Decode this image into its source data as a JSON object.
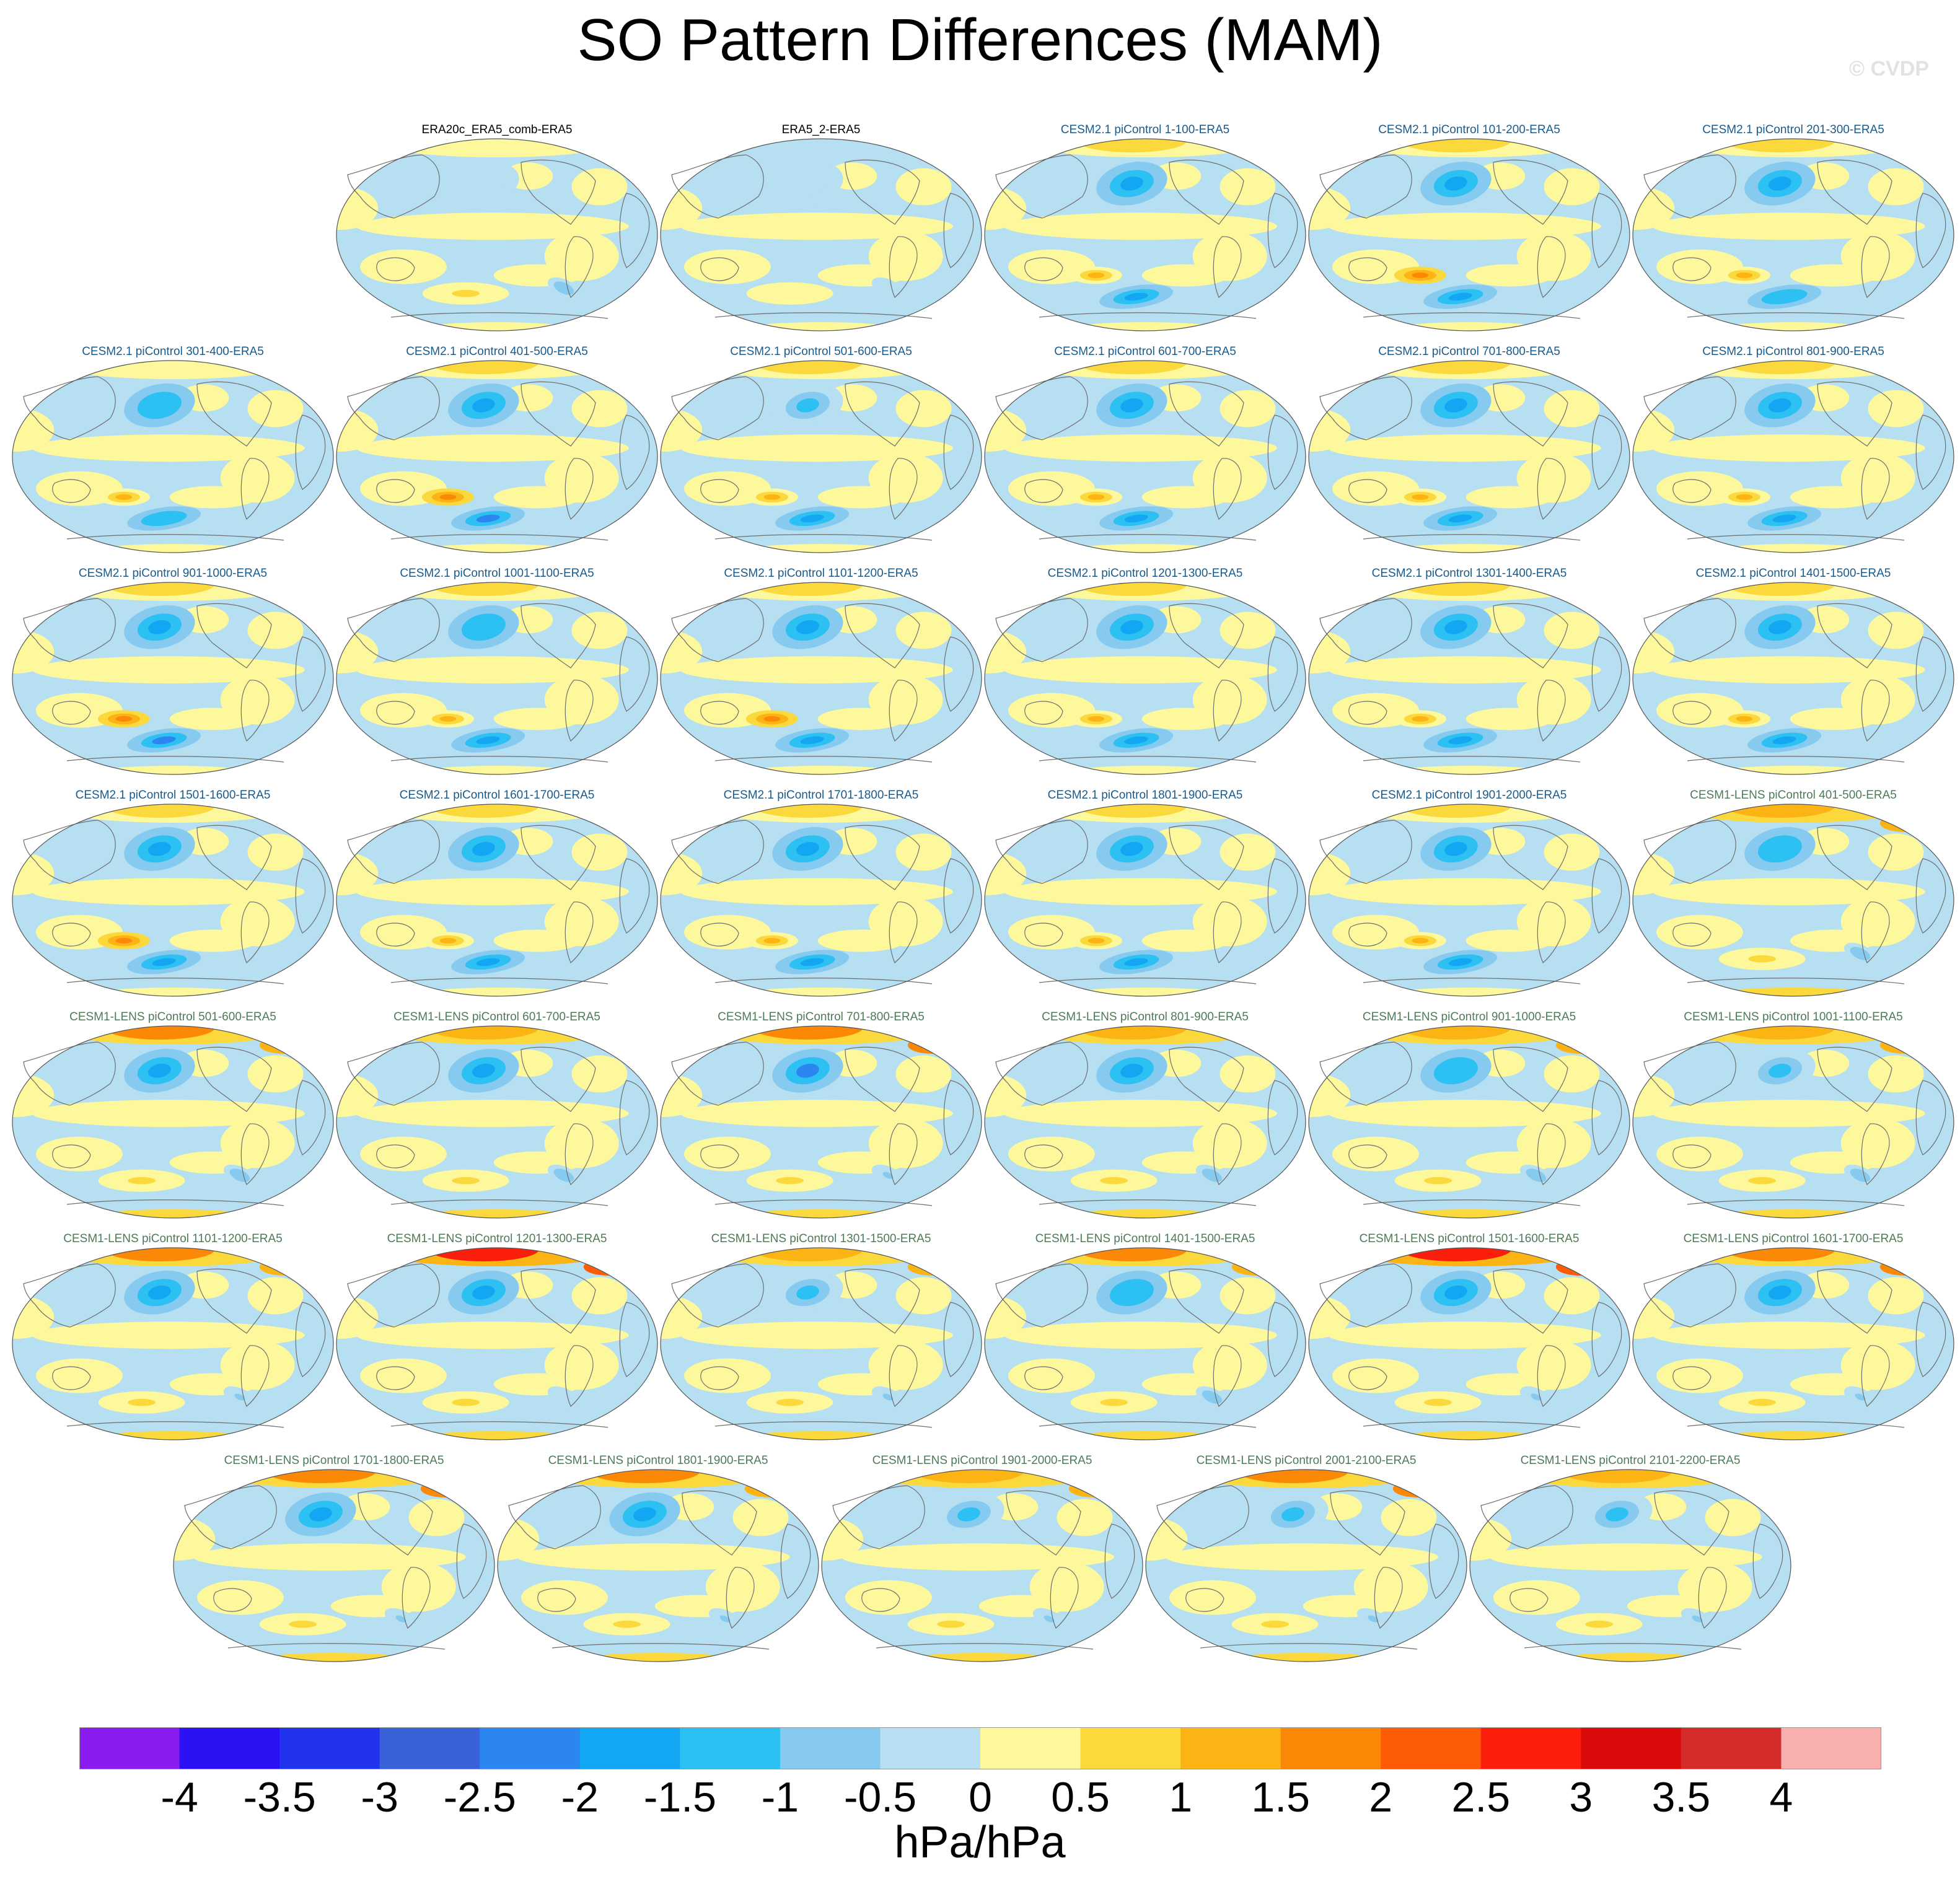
{
  "title": "SO Pattern Differences (MAM)",
  "watermark": "© CVDP",
  "chart_data": {
    "type": "heatmap",
    "title": "SO Pattern Differences (MAM)",
    "projection": "Robinson global maps (Pacific-centred)",
    "variable": "Southern Oscillation sea level pressure regression pattern difference vs ERA5",
    "units": "hPa/hPa",
    "colorbar": {
      "levels": [
        -4,
        -3.5,
        -3,
        -2.5,
        -2,
        -1.5,
        -1,
        -0.5,
        0,
        0.5,
        1,
        1.5,
        2,
        2.5,
        3,
        3.5,
        4
      ],
      "tick_labels": [
        "-4",
        "-3.5",
        "-3",
        "-2.5",
        "-2",
        "-1.5",
        "-1",
        "-0.5",
        "0",
        "0.5",
        "1",
        "1.5",
        "2",
        "2.5",
        "3",
        "3.5",
        "4"
      ],
      "colors": [
        "#8a1cf0",
        "#2a12f5",
        "#2233ee",
        "#3a62d8",
        "#2b86f0",
        "#13a6f2",
        "#2cc0f3",
        "#86caef",
        "#b6dff2",
        "#fdf89b",
        "#fbd83c",
        "#fcb314",
        "#fb8807",
        "#fd5b06",
        "#fc1e0d",
        "#db0b0c",
        "#d42b2b",
        "#fbb0b0"
      ],
      "label": "hPa/hPa"
    },
    "panels": [
      {
        "label": "ERA20c_ERA5_comb-ERA5",
        "group": "obs",
        "nh_blob": 0.4,
        "sh_blob": 0.9,
        "arctic": 0.1
      },
      {
        "label": "ERA5_2-ERA5",
        "group": "obs",
        "nh_blob": 0.2,
        "sh_blob": 0.3,
        "arctic": 0.0
      },
      {
        "label": "CESM2.1 piControl 1-100-ERA5",
        "group": "cesm2",
        "nh_blob": 1.7,
        "sh_blob": 1.8,
        "arctic": 0.6
      },
      {
        "label": "CESM2.1 piControl 101-200-ERA5",
        "group": "cesm2",
        "nh_blob": 1.6,
        "sh_blob": 2.0,
        "arctic": 0.6
      },
      {
        "label": "CESM2.1 piControl 201-300-ERA5",
        "group": "cesm2",
        "nh_blob": 1.8,
        "sh_blob": 1.5,
        "arctic": 0.5
      },
      {
        "label": "CESM2.1 piControl 301-400-ERA5",
        "group": "cesm2",
        "nh_blob": 1.5,
        "sh_blob": 1.5,
        "arctic": 0.4
      },
      {
        "label": "CESM2.1 piControl 401-500-ERA5",
        "group": "cesm2",
        "nh_blob": 1.6,
        "sh_blob": 2.1,
        "arctic": 0.6
      },
      {
        "label": "CESM2.1 piControl 501-600-ERA5",
        "group": "cesm2",
        "nh_blob": 1.3,
        "sh_blob": 1.7,
        "arctic": 0.6
      },
      {
        "label": "CESM2.1 piControl 601-700-ERA5",
        "group": "cesm2",
        "nh_blob": 1.6,
        "sh_blob": 1.6,
        "arctic": 0.6
      },
      {
        "label": "CESM2.1 piControl 701-800-ERA5",
        "group": "cesm2",
        "nh_blob": 1.6,
        "sh_blob": 1.8,
        "arctic": 0.5
      },
      {
        "label": "CESM2.1 piControl 801-900-ERA5",
        "group": "cesm2",
        "nh_blob": 1.7,
        "sh_blob": 1.7,
        "arctic": 0.7
      },
      {
        "label": "CESM2.1 piControl 901-1000-ERA5",
        "group": "cesm2",
        "nh_blob": 1.6,
        "sh_blob": 2.1,
        "arctic": 0.5
      },
      {
        "label": "CESM2.1 piControl 1001-1100-ERA5",
        "group": "cesm2",
        "nh_blob": 1.5,
        "sh_blob": 1.9,
        "arctic": 0.5
      },
      {
        "label": "CESM2.1 piControl 1101-1200-ERA5",
        "group": "cesm2",
        "nh_blob": 1.8,
        "sh_blob": 2.0,
        "arctic": 0.9
      },
      {
        "label": "CESM2.1 piControl 1201-1300-ERA5",
        "group": "cesm2",
        "nh_blob": 1.7,
        "sh_blob": 1.6,
        "arctic": 0.9
      },
      {
        "label": "CESM2.1 piControl 1301-1400-ERA5",
        "group": "cesm2",
        "nh_blob": 1.7,
        "sh_blob": 1.9,
        "arctic": 0.6
      },
      {
        "label": "CESM2.1 piControl 1401-1500-ERA5",
        "group": "cesm2",
        "nh_blob": 1.7,
        "sh_blob": 1.8,
        "arctic": 0.6
      },
      {
        "label": "CESM2.1 piControl 1501-1600-ERA5",
        "group": "cesm2",
        "nh_blob": 1.6,
        "sh_blob": 2.0,
        "arctic": 0.7
      },
      {
        "label": "CESM2.1 piControl 1601-1700-ERA5",
        "group": "cesm2",
        "nh_blob": 1.7,
        "sh_blob": 1.9,
        "arctic": 0.8
      },
      {
        "label": "CESM2.1 piControl 1701-1800-ERA5",
        "group": "cesm2",
        "nh_blob": 1.6,
        "sh_blob": 1.7,
        "arctic": 0.6
      },
      {
        "label": "CESM2.1 piControl 1801-1900-ERA5",
        "group": "cesm2",
        "nh_blob": 1.8,
        "sh_blob": 1.7,
        "arctic": 0.8
      },
      {
        "label": "CESM2.1 piControl 1901-2000-ERA5",
        "group": "cesm2",
        "nh_blob": 1.6,
        "sh_blob": 1.6,
        "arctic": 0.6
      },
      {
        "label": "CESM1-LENS piControl 401-500-ERA5",
        "group": "cesm1",
        "nh_blob": 1.5,
        "sh_blob": 0.9,
        "arctic": 1.3
      },
      {
        "label": "CESM1-LENS piControl 501-600-ERA5",
        "group": "cesm1",
        "nh_blob": 1.6,
        "sh_blob": 0.8,
        "arctic": 1.5
      },
      {
        "label": "CESM1-LENS piControl 601-700-ERA5",
        "group": "cesm1",
        "nh_blob": 1.8,
        "sh_blob": 0.8,
        "arctic": 1.2
      },
      {
        "label": "CESM1-LENS piControl 701-800-ERA5",
        "group": "cesm1",
        "nh_blob": 2.1,
        "sh_blob": 0.6,
        "arctic": 1.8
      },
      {
        "label": "CESM1-LENS piControl 801-900-ERA5",
        "group": "cesm1",
        "nh_blob": 1.6,
        "sh_blob": 0.9,
        "arctic": 1.1
      },
      {
        "label": "CESM1-LENS piControl 901-1000-ERA5",
        "group": "cesm1",
        "nh_blob": 1.5,
        "sh_blob": 0.8,
        "arctic": 1.3
      },
      {
        "label": "CESM1-LENS piControl 1001-1100-ERA5",
        "group": "cesm1",
        "nh_blob": 1.4,
        "sh_blob": 0.9,
        "arctic": 1.3
      },
      {
        "label": "CESM1-LENS piControl 1101-1200-ERA5",
        "group": "cesm1",
        "nh_blob": 1.7,
        "sh_blob": 0.7,
        "arctic": 1.5
      },
      {
        "label": "CESM1-LENS piControl 1201-1300-ERA5",
        "group": "cesm1",
        "nh_blob": 1.7,
        "sh_blob": 0.5,
        "arctic": 2.6
      },
      {
        "label": "CESM1-LENS piControl 1301-1500-ERA5",
        "group": "cesm1",
        "nh_blob": 1.4,
        "sh_blob": 0.7,
        "arctic": 1.4
      },
      {
        "label": "CESM1-LENS piControl 1401-1500-ERA5",
        "group": "cesm1",
        "nh_blob": 1.5,
        "sh_blob": 0.9,
        "arctic": 1.6
      },
      {
        "label": "CESM1-LENS piControl 1501-1600-ERA5",
        "group": "cesm1",
        "nh_blob": 2.0,
        "sh_blob": 0.6,
        "arctic": 2.5
      },
      {
        "label": "CESM1-LENS piControl 1601-1700-ERA5",
        "group": "cesm1",
        "nh_blob": 1.8,
        "sh_blob": 0.7,
        "arctic": 1.7
      },
      {
        "label": "CESM1-LENS piControl 1701-1800-ERA5",
        "group": "cesm1",
        "nh_blob": 1.8,
        "sh_blob": 0.6,
        "arctic": 1.7
      },
      {
        "label": "CESM1-LENS piControl 1801-1900-ERA5",
        "group": "cesm1",
        "nh_blob": 1.8,
        "sh_blob": 0.7,
        "arctic": 1.6
      },
      {
        "label": "CESM1-LENS piControl 1901-2000-ERA5",
        "group": "cesm1",
        "nh_blob": 1.4,
        "sh_blob": 0.6,
        "arctic": 1.3
      },
      {
        "label": "CESM1-LENS piControl 2001-2100-ERA5",
        "group": "cesm1",
        "nh_blob": 1.3,
        "sh_blob": 0.6,
        "arctic": 1.9
      },
      {
        "label": "CESM1-LENS piControl 2101-2200-ERA5",
        "group": "cesm1",
        "nh_blob": 1.3,
        "sh_blob": 0.7,
        "arctic": 1.2
      }
    ]
  },
  "group_colors": {
    "obs": "#000000",
    "cesm2": "#1a5a8a",
    "cesm1": "#4e7a5a"
  }
}
